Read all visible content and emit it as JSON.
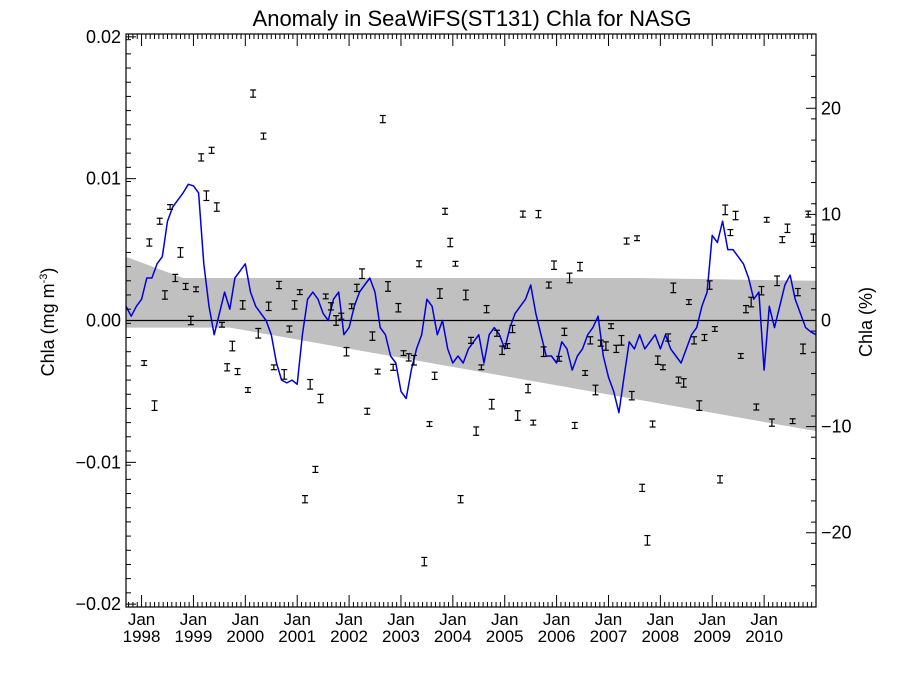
{
  "chart_data": {
    "type": "scatter",
    "title": "Anomaly in SeaWiFS(ST131) Chla for NASG",
    "ylabel_left": "Chla (mg m",
    "ylabel_left_sup": "-3",
    "ylabel_left_close": ")",
    "ylabel_right": "Chla (%)",
    "xlim": [
      1997.7,
      2011.0
    ],
    "ylim": [
      -0.0202,
      0.0202
    ],
    "ylim_right": [
      -27.0,
      27.0
    ],
    "grid": false,
    "zero_line": true,
    "y_ticks": [
      {
        "value": 0.02,
        "label": "0.02"
      },
      {
        "value": 0.01,
        "label": "0.01"
      },
      {
        "value": 0.0,
        "label": "0.00"
      },
      {
        "value": -0.01,
        "label": "−0.01"
      },
      {
        "value": -0.02,
        "label": "−0.02"
      }
    ],
    "y_ticks_right": [
      {
        "value": 20,
        "label": "20"
      },
      {
        "value": 10,
        "label": "10"
      },
      {
        "value": 0,
        "label": "0"
      },
      {
        "value": -10,
        "label": "−10"
      },
      {
        "value": -20,
        "label": "−20"
      }
    ],
    "x_ticks": [
      {
        "value": 1998.0,
        "month": "Jan",
        "year": "1998"
      },
      {
        "value": 1999.0,
        "month": "Jan",
        "year": "1999"
      },
      {
        "value": 2000.0,
        "month": "Jan",
        "year": "2000"
      },
      {
        "value": 2001.0,
        "month": "Jan",
        "year": "2001"
      },
      {
        "value": 2002.0,
        "month": "Jan",
        "year": "2002"
      },
      {
        "value": 2003.0,
        "month": "Jan",
        "year": "2003"
      },
      {
        "value": 2004.0,
        "month": "Jan",
        "year": "2004"
      },
      {
        "value": 2005.0,
        "month": "Jan",
        "year": "2005"
      },
      {
        "value": 2006.0,
        "month": "Jan",
        "year": "2006"
      },
      {
        "value": 2007.0,
        "month": "Jan",
        "year": "2007"
      },
      {
        "value": 2008.0,
        "month": "Jan",
        "year": "2008"
      },
      {
        "value": 2009.0,
        "month": "Jan",
        "year": "2009"
      },
      {
        "value": 2010.0,
        "month": "Jan",
        "year": "2010"
      }
    ],
    "trend_band": {
      "color": "#c0c0c0",
      "upper": [
        [
          1997.7,
          0.0045
        ],
        [
          1998.8,
          0.003
        ],
        [
          2007.5,
          0.003
        ],
        [
          2011.0,
          0.0028
        ]
      ],
      "lower": [
        [
          2011.0,
          -0.0078
        ],
        [
          1999.7,
          -0.0005
        ],
        [
          1997.7,
          -0.0005
        ]
      ]
    },
    "series": [
      {
        "style": "line",
        "color": "#0000dd",
        "x": [
          1997.7,
          1997.8,
          1997.9,
          1998.0,
          1998.1,
          1998.2,
          1998.3,
          1998.4,
          1998.5,
          1998.6,
          1998.7,
          1998.8,
          1998.9,
          1999.0,
          1999.1,
          1999.2,
          1999.3,
          1999.4,
          1999.5,
          1999.6,
          1999.7,
          1999.8,
          1999.9,
          2000.0,
          2000.1,
          2000.2,
          2000.3,
          2000.4,
          2000.5,
          2000.6,
          2000.7,
          2000.8,
          2000.9,
          2001.0,
          2001.1,
          2001.2,
          2001.3,
          2001.4,
          2001.5,
          2001.6,
          2001.7,
          2001.8,
          2001.9,
          2002.0,
          2002.1,
          2002.2,
          2002.3,
          2002.4,
          2002.5,
          2002.6,
          2002.7,
          2002.8,
          2002.9,
          2003.0,
          2003.1,
          2003.2,
          2003.3,
          2003.4,
          2003.5,
          2003.6,
          2003.7,
          2003.8,
          2003.9,
          2004.0,
          2004.1,
          2004.2,
          2004.3,
          2004.4,
          2004.5,
          2004.6,
          2004.7,
          2004.8,
          2004.9,
          2005.0,
          2005.1,
          2005.2,
          2005.3,
          2005.4,
          2005.5,
          2005.6,
          2005.7,
          2005.8,
          2005.9,
          2006.0,
          2006.1,
          2006.2,
          2006.3,
          2006.4,
          2006.5,
          2006.6,
          2006.7,
          2006.8,
          2006.9,
          2007.0,
          2007.1,
          2007.2,
          2007.3,
          2007.4,
          2007.5,
          2007.6,
          2007.7,
          2007.8,
          2007.9,
          2008.0,
          2008.1,
          2008.2,
          2008.3,
          2008.4,
          2008.5,
          2008.6,
          2008.7,
          2008.8,
          2008.9,
          2009.0,
          2009.1,
          2009.2,
          2009.3,
          2009.4,
          2009.5,
          2009.6,
          2009.7,
          2009.8,
          2009.9,
          2010.0,
          2010.1,
          2010.2,
          2010.3,
          2010.4,
          2010.5,
          2010.6,
          2010.7,
          2010.8,
          2010.9,
          2011.0
        ],
        "y": [
          0.001,
          0.0003,
          0.001,
          0.0015,
          0.003,
          0.003,
          0.004,
          0.0045,
          0.007,
          0.008,
          0.0085,
          0.009,
          0.0096,
          0.0095,
          0.009,
          0.004,
          0.001,
          -0.001,
          0.0005,
          0.002,
          0.0008,
          0.003,
          0.0035,
          0.004,
          0.002,
          0.001,
          0.0005,
          0.0,
          -0.001,
          -0.003,
          -0.0042,
          -0.0044,
          -0.0042,
          -0.0045,
          -0.001,
          0.0015,
          0.002,
          0.0015,
          0.0005,
          0.0,
          0.0015,
          0.002,
          -0.001,
          -0.0005,
          0.001,
          0.002,
          0.0025,
          0.003,
          0.002,
          -0.0005,
          -0.001,
          -0.0025,
          -0.003,
          -0.005,
          -0.0055,
          -0.0035,
          -0.002,
          -0.001,
          0.0015,
          0.001,
          -0.001,
          0.0,
          -0.002,
          -0.003,
          -0.0025,
          -0.003,
          -0.002,
          -0.0015,
          -0.001,
          -0.003,
          -0.001,
          -0.0005,
          -0.001,
          -0.002,
          -0.0005,
          0.0005,
          0.001,
          0.0015,
          0.0025,
          0.0005,
          -0.001,
          -0.0025,
          -0.0025,
          -0.003,
          -0.0015,
          -0.002,
          -0.0035,
          -0.0025,
          -0.002,
          -0.001,
          -0.0005,
          0.0003,
          -0.0025,
          -0.004,
          -0.005,
          -0.0065,
          -0.004,
          -0.0015,
          -0.002,
          -0.001,
          -0.002,
          -0.0015,
          -0.001,
          -0.002,
          -0.001,
          -0.002,
          -0.0025,
          -0.003,
          -0.002,
          -0.001,
          -0.0005,
          0.001,
          0.002,
          0.006,
          0.0055,
          0.007,
          0.005,
          0.005,
          0.0045,
          0.004,
          0.003,
          0.0015,
          0.002,
          -0.0035,
          0.001,
          -0.0005,
          0.001,
          0.0025,
          0.0032,
          0.0015,
          0.0005,
          -0.0005,
          -0.0008,
          -0.001
        ]
      },
      {
        "style": "errorbar",
        "color": "#000000",
        "x": [
          1998.05,
          1998.15,
          1998.25,
          1998.35,
          1998.45,
          1998.55,
          1998.65,
          1998.75,
          1998.85,
          1998.95,
          1999.05,
          1999.15,
          1999.25,
          1999.35,
          1999.45,
          1999.55,
          1999.65,
          1999.75,
          1999.85,
          1999.95,
          2000.05,
          2000.15,
          2000.25,
          2000.35,
          2000.45,
          2000.55,
          2000.65,
          2000.75,
          2000.85,
          2000.95,
          2001.05,
          2001.15,
          2001.25,
          2001.35,
          2001.45,
          2001.55,
          2001.65,
          2001.75,
          2001.85,
          2001.95,
          2002.05,
          2002.15,
          2002.25,
          2002.35,
          2002.45,
          2002.55,
          2002.65,
          2002.75,
          2002.85,
          2002.95,
          2003.05,
          2003.15,
          2003.25,
          2003.35,
          2003.45,
          2003.55,
          2003.65,
          2003.75,
          2003.85,
          2003.95,
          2004.05,
          2004.15,
          2004.25,
          2004.35,
          2004.45,
          2004.55,
          2004.65,
          2004.75,
          2004.85,
          2004.95,
          2005.05,
          2005.15,
          2005.25,
          2005.35,
          2005.45,
          2005.55,
          2005.65,
          2005.75,
          2005.85,
          2005.95,
          2006.05,
          2006.15,
          2006.25,
          2006.35,
          2006.45,
          2006.55,
          2006.65,
          2006.75,
          2006.85,
          2006.95,
          2007.05,
          2007.15,
          2007.25,
          2007.35,
          2007.45,
          2007.55,
          2007.65,
          2007.75,
          2007.85,
          2007.95,
          2008.05,
          2008.15,
          2008.25,
          2008.35,
          2008.45,
          2008.55,
          2008.65,
          2008.75,
          2008.85,
          2008.95,
          2009.05,
          2009.15,
          2009.25,
          2009.35,
          2009.45,
          2009.55,
          2009.65,
          2009.75,
          2009.85,
          2009.95,
          2010.05,
          2010.15,
          2010.25,
          2010.35,
          2010.45,
          2010.55,
          2010.65,
          2010.75,
          2010.85,
          2010.95
        ],
        "y": [
          -0.003,
          0.0055,
          -0.006,
          0.007,
          0.0018,
          0.008,
          0.003,
          0.0048,
          0.0024,
          0.0,
          0.0022,
          0.0115,
          0.0088,
          0.012,
          0.008,
          -0.0003,
          -0.0033,
          -0.0018,
          -0.0036,
          0.0011,
          -0.0049,
          0.016,
          -0.0009,
          0.013,
          0.001,
          -0.0033,
          0.0025,
          -0.0038,
          -0.0006,
          0.0011,
          0.002,
          -0.0126,
          -0.0045,
          -0.0105,
          -0.0055,
          0.0017,
          0.001,
          0.0,
          0.0003,
          -0.0022,
          0.001,
          0.0023,
          0.0033,
          -0.0064,
          -0.0011,
          -0.0036,
          0.0142,
          0.0024,
          -0.0033,
          0.0009,
          -0.0023,
          -0.0026,
          -0.0028,
          0.004,
          -0.017,
          -0.0073,
          -0.0039,
          0.0019,
          0.0077,
          0.0055,
          0.004,
          -0.0126,
          0.0018,
          -0.0014,
          -0.0078,
          -0.0033,
          0.0008,
          -0.0059,
          -0.0009,
          -0.0021,
          -0.0018,
          -0.0006,
          -0.0067,
          0.0075,
          -0.0048,
          -0.0072,
          0.0075,
          -0.0022,
          0.0025,
          0.0039,
          -0.0027,
          -0.0008,
          0.003,
          -0.0074,
          0.0038,
          -0.0037,
          -0.0014,
          -0.0049,
          -0.0016,
          -0.0018,
          -0.0004,
          -0.002,
          -0.0014,
          0.0056,
          -0.0053,
          0.0058,
          -0.0118,
          -0.0155,
          -0.0073,
          -0.0028,
          -0.0033,
          -0.0012,
          0.0023,
          -0.0042,
          -0.0044,
          0.0013,
          -0.0014,
          -0.006,
          -0.0012,
          0.0025,
          -0.0006,
          -0.0112,
          0.0078,
          0.0062,
          0.0074,
          -0.0025,
          0.0008,
          0.0013,
          -0.0061,
          0.0021,
          0.0071,
          -0.0072,
          0.0028,
          0.0057,
          0.0065,
          -0.0071,
          0.002,
          -0.002,
          0.0075,
          0.0058
        ]
      }
    ]
  }
}
